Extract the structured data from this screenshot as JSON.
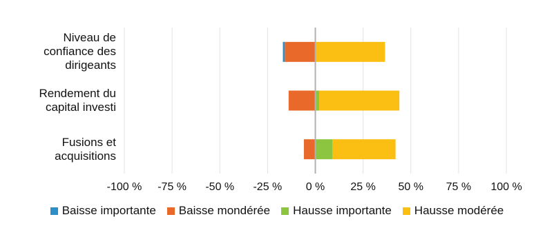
{
  "chart_data": {
    "type": "diverging-stacked-bar",
    "categories": [
      "Niveau de confiance des dirigeants",
      "Rendement du capital investi",
      "Fusions et acquisitions"
    ],
    "series": [
      {
        "name": "Baisse importante",
        "color": "#2e8fc8",
        "values": [
          -1,
          0,
          0
        ]
      },
      {
        "name": "Baisse mondérée",
        "color": "#e8692a",
        "values": [
          -16,
          -14,
          -6
        ]
      },
      {
        "name": "Hausse importante",
        "color": "#8cc641",
        "values": [
          0,
          2,
          9
        ]
      },
      {
        "name": "Hausse modérée",
        "color": "#fbbf14",
        "values": [
          36.5,
          42,
          33
        ]
      }
    ],
    "xlim": [
      -100,
      100
    ],
    "xticks": [
      {
        "value": -100,
        "label": "-100 %"
      },
      {
        "value": -75,
        "label": "-75 %"
      },
      {
        "value": -50,
        "label": "-50 %"
      },
      {
        "value": -25,
        "label": "-25 %"
      },
      {
        "value": 0,
        "label": "0 %"
      },
      {
        "value": 25,
        "label": "25 %"
      },
      {
        "value": 50,
        "label": "50 %"
      },
      {
        "value": 75,
        "label": "75 %"
      },
      {
        "value": 100,
        "label": "100 %"
      }
    ],
    "grid": true,
    "legend": "bottom"
  }
}
